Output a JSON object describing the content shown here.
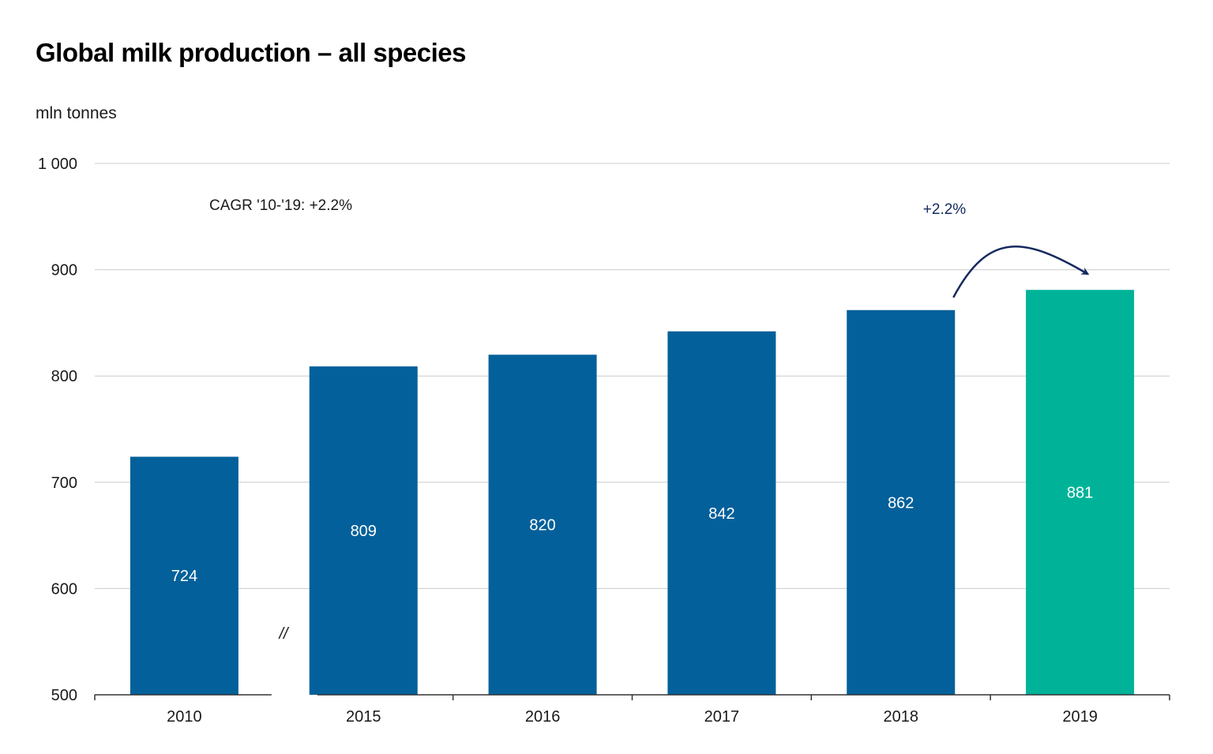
{
  "chart_data": {
    "type": "bar",
    "title": "Global milk production – all species",
    "ylabel": "mln tonnes",
    "xlabel": "",
    "categories": [
      "2010",
      "2015",
      "2016",
      "2017",
      "2018",
      "2019"
    ],
    "values": [
      724,
      809,
      820,
      842,
      862,
      881
    ],
    "value_labels": [
      "724",
      "809",
      "820",
      "842",
      "862",
      "881"
    ],
    "ylim": [
      500,
      1000
    ],
    "yticks": [
      500,
      600,
      700,
      800,
      900,
      1000
    ],
    "ytick_labels": [
      "500",
      "600",
      "700",
      "800",
      "900",
      "1 000"
    ],
    "grid": true,
    "legend": "none",
    "colors": {
      "default_bar": "#03609a",
      "highlight_bar": "#00b398",
      "arrow": "#14295e",
      "grid": "#cccccc",
      "axis": "#333333"
    },
    "highlight_category": "2019",
    "axis_break_after": "2010",
    "axis_break_marker": "//",
    "annotations": {
      "cagr": "CAGR '10-'19: +2.2%",
      "growth_label": "+2.2%",
      "growth_from": "2018",
      "growth_to": "2019"
    }
  }
}
